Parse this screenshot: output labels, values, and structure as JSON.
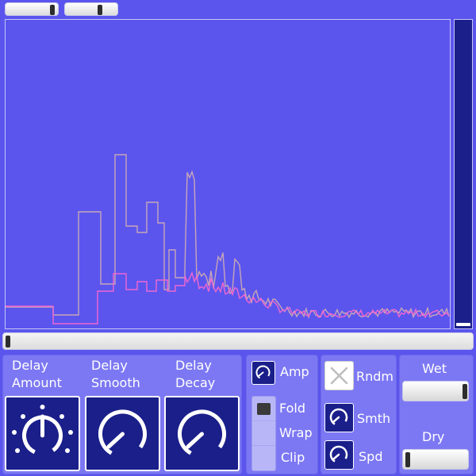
{
  "top_sliders": [
    {
      "name": "top-slider-1",
      "value": 0.93
    },
    {
      "name": "top-slider-2",
      "value": 0.6
    }
  ],
  "spectrum": {
    "colors": {
      "line_a": "#c7a6b7",
      "line_b": "#f067d0",
      "background": "#5b55ee",
      "border": "#c7c5f6"
    }
  },
  "meter": {
    "level": 0.02
  },
  "knobs": [
    {
      "label": "Delay\nAmount",
      "value": 0.5,
      "ticks": true
    },
    {
      "label": "Delay\nSmooth",
      "value": 0.6,
      "ticks": false
    },
    {
      "label": "Delay\nDecay",
      "value": 0.6,
      "ticks": false
    }
  ],
  "amp": {
    "label": "Amp"
  },
  "fold": {
    "options": [
      "Fold",
      "Wrap",
      "Clip"
    ],
    "selected": "Fold"
  },
  "random": {
    "label": "Rndm",
    "icon": "x-icon"
  },
  "smooth": {
    "label": "Smth"
  },
  "speed": {
    "label": "Spd"
  },
  "wet": {
    "label": "Wet",
    "value": 0.98
  },
  "dry": {
    "label": "Dry",
    "value": 0.02
  }
}
